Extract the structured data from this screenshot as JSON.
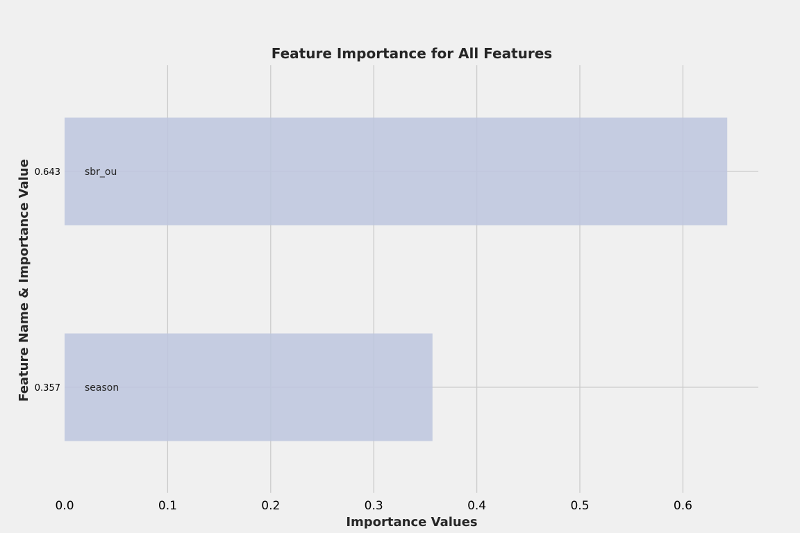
{
  "chart_data": {
    "type": "bar",
    "orientation": "horizontal",
    "title": "Feature Importance for All Features",
    "xlabel": "Importance Values",
    "ylabel": "Feature Name & Importance Value",
    "xlim": [
      0.0,
      0.675
    ],
    "xticks": [
      "0.0",
      "0.1",
      "0.2",
      "0.3",
      "0.4",
      "0.5",
      "0.6"
    ],
    "grid": true,
    "categories": [
      "sbr_ou",
      "season"
    ],
    "tick_labels": [
      "0.643",
      "0.357"
    ],
    "values": [
      0.643,
      0.357
    ],
    "colors": {
      "bar": "#bec6de",
      "grid": "#cbcbcb",
      "background": "#f0f0f0"
    }
  }
}
